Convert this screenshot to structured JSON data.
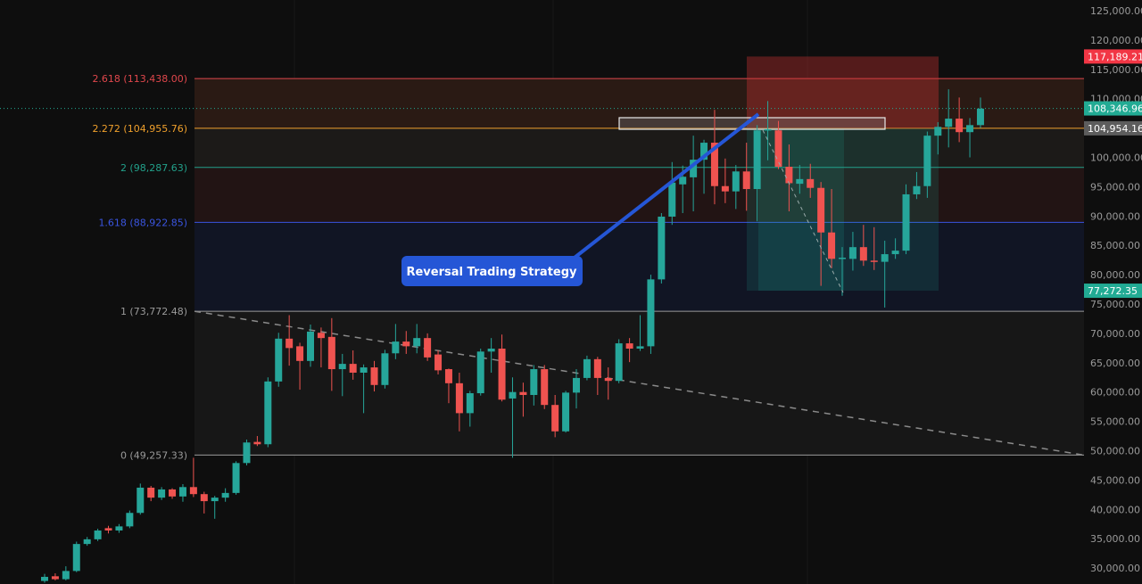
{
  "chart_data": {
    "type": "candlestick",
    "title": "",
    "xlabel": "",
    "ylabel": "",
    "ylim": [
      27000,
      126000
    ],
    "grid": false,
    "y_ticks": [
      "125,000.00",
      "120,000.00",
      "115,000.00",
      "110,000.00",
      "100,000.00",
      "95,000.00",
      "90,000.00",
      "85,000.00",
      "80,000.00",
      "75,000.00",
      "70,000.00",
      "65,000.00",
      "60,000.00",
      "55,000.00",
      "50,000.00",
      "45,000.00",
      "40,000.00",
      "35,000.00",
      "30,000.00"
    ],
    "candle_fields": [
      "open",
      "high",
      "low",
      "close"
    ],
    "candles": [
      [
        27800,
        29000,
        27500,
        28500
      ],
      [
        28600,
        29100,
        27900,
        28100
      ],
      [
        28100,
        30300,
        27900,
        29500
      ],
      [
        29500,
        34500,
        29300,
        34100
      ],
      [
        34100,
        35300,
        33800,
        34900
      ],
      [
        34900,
        36700,
        34600,
        36400
      ],
      [
        36800,
        37200,
        35900,
        36400
      ],
      [
        36400,
        37500,
        36000,
        37100
      ],
      [
        37100,
        39800,
        36800,
        39400
      ],
      [
        39400,
        44400,
        39100,
        43700
      ],
      [
        43700,
        44000,
        41400,
        42000
      ],
      [
        42000,
        43800,
        41600,
        43400
      ],
      [
        43400,
        43600,
        41800,
        42200
      ],
      [
        42200,
        44300,
        41300,
        43800
      ],
      [
        43800,
        48800,
        42100,
        42600
      ],
      [
        42600,
        43000,
        39300,
        41400
      ],
      [
        41400,
        42300,
        38400,
        42000
      ],
      [
        42000,
        43600,
        41300,
        42800
      ],
      [
        42800,
        48200,
        42500,
        47900
      ],
      [
        47900,
        51900,
        47500,
        51400
      ],
      [
        51500,
        52500,
        50800,
        51100
      ],
      [
        51100,
        62500,
        50600,
        61800
      ],
      [
        61800,
        70100,
        60900,
        69100
      ],
      [
        69100,
        73100,
        64500,
        67500
      ],
      [
        67800,
        68400,
        60400,
        65300
      ],
      [
        65300,
        71500,
        64300,
        70300
      ],
      [
        70100,
        71000,
        64200,
        69200
      ],
      [
        69400,
        72600,
        60200,
        63900
      ],
      [
        63900,
        66500,
        59300,
        64800
      ],
      [
        64800,
        67100,
        62100,
        63300
      ],
      [
        63300,
        64700,
        56400,
        64200
      ],
      [
        64200,
        65300,
        60100,
        61200
      ],
      [
        61200,
        67200,
        60600,
        66600
      ],
      [
        66600,
        71600,
        65600,
        68600
      ],
      [
        68600,
        70400,
        66500,
        67800
      ],
      [
        67800,
        71600,
        66600,
        69200
      ],
      [
        69200,
        70000,
        65300,
        65900
      ],
      [
        66400,
        67100,
        63000,
        63700
      ],
      [
        63900,
        64000,
        58100,
        61500
      ],
      [
        61500,
        63300,
        53300,
        56400
      ],
      [
        56400,
        60200,
        54100,
        59800
      ],
      [
        59800,
        67400,
        59400,
        66900
      ],
      [
        66900,
        69200,
        63300,
        67400
      ],
      [
        67400,
        69800,
        58400,
        58700
      ],
      [
        58900,
        62500,
        48800,
        60000
      ],
      [
        60000,
        61600,
        55800,
        59500
      ],
      [
        59500,
        64600,
        57700,
        63900
      ],
      [
        63900,
        64600,
        57100,
        57800
      ],
      [
        57800,
        59500,
        52300,
        53300
      ],
      [
        53300,
        60200,
        53100,
        59900
      ],
      [
        59900,
        63900,
        57200,
        62400
      ],
      [
        62400,
        66200,
        62000,
        65600
      ],
      [
        65600,
        66000,
        59500,
        62400
      ],
      [
        62400,
        64200,
        58700,
        61900
      ],
      [
        61900,
        69000,
        61500,
        68300
      ],
      [
        68300,
        69200,
        65100,
        67400
      ],
      [
        67400,
        73100,
        67000,
        67800
      ],
      [
        67800,
        80000,
        66500,
        79200
      ],
      [
        79200,
        90500,
        78500,
        89900
      ],
      [
        89900,
        99200,
        88500,
        95700
      ],
      [
        95400,
        98600,
        90500,
        96700
      ],
      [
        96600,
        103700,
        90800,
        99600
      ],
      [
        99600,
        103000,
        93800,
        102500
      ],
      [
        102500,
        108100,
        92000,
        95100
      ],
      [
        95100,
        99800,
        92200,
        94200
      ],
      [
        94200,
        98700,
        91200,
        97600
      ],
      [
        97600,
        102500,
        90900,
        94600
      ],
      [
        94600,
        105500,
        89100,
        104600
      ],
      [
        104600,
        109600,
        99500,
        104800
      ],
      [
        104600,
        106200,
        98000,
        98400
      ],
      [
        98400,
        102200,
        90800,
        95600
      ],
      [
        95500,
        98700,
        93800,
        96300
      ],
      [
        96300,
        98900,
        93100,
        94800
      ],
      [
        94800,
        95800,
        78100,
        87200
      ],
      [
        87200,
        94600,
        81100,
        82700
      ],
      [
        82700,
        84700,
        76400,
        82900
      ],
      [
        82700,
        87300,
        80700,
        84700
      ],
      [
        84700,
        88500,
        81500,
        82400
      ],
      [
        82400,
        88100,
        80800,
        82200
      ],
      [
        82200,
        85800,
        74400,
        83500
      ],
      [
        83500,
        86200,
        82700,
        84100
      ],
      [
        84100,
        95400,
        83500,
        93700
      ],
      [
        93700,
        97500,
        92900,
        95100
      ],
      [
        95100,
        104400,
        93100,
        103700
      ],
      [
        103700,
        106000,
        100500,
        105200
      ],
      [
        105200,
        111600,
        101700,
        106600
      ],
      [
        106600,
        110200,
        102600,
        104300
      ],
      [
        104300,
        106700,
        100000,
        105500
      ],
      [
        105500,
        110200,
        105000,
        108300
      ]
    ],
    "fib_levels": [
      {
        "label": "2.618 (113,438.00)",
        "ratio": 2.618,
        "price": 113438.0,
        "color": "#e0474c",
        "fill": "#2a1a14"
      },
      {
        "label": "2.272 (104,955.76)",
        "ratio": 2.272,
        "price": 104955.76,
        "color": "#f0a02c",
        "fill": "#1c1a18"
      },
      {
        "label": "2 (98,287.63)",
        "ratio": 2,
        "price": 98287.63,
        "color": "#22a08a",
        "fill": "#221414"
      },
      {
        "label": "1.618 (88,922.85)",
        "ratio": 1.618,
        "price": 88922.85,
        "color": "#3a55e0",
        "fill": "#111524"
      },
      {
        "label": "1 (73,772.48)",
        "ratio": 1,
        "price": 73772.48,
        "color": "#9a9a9a",
        "fill": "#171717"
      },
      {
        "label": "0 (49,257.33)",
        "ratio": 0,
        "price": 49257.33,
        "color": "#9a9a9a",
        "fill": null
      }
    ],
    "price_badges": [
      {
        "text": "117,189.21",
        "price": 117189.21,
        "color": "#f23645"
      },
      {
        "text": "108,346.96",
        "price": 108346.96,
        "color": "#22ab94"
      },
      {
        "text": "104,954.16",
        "price": 104954.16,
        "color": "#5d5d5d"
      },
      {
        "text": "77,272.35",
        "price": 77272.35,
        "color": "#22ab94"
      }
    ],
    "annotation": {
      "text": "Reversal Trading Strategy",
      "color": "#2556d6"
    },
    "colors": {
      "up": "#26a69a",
      "down": "#ef5350",
      "background": "#0e0e0e"
    }
  }
}
